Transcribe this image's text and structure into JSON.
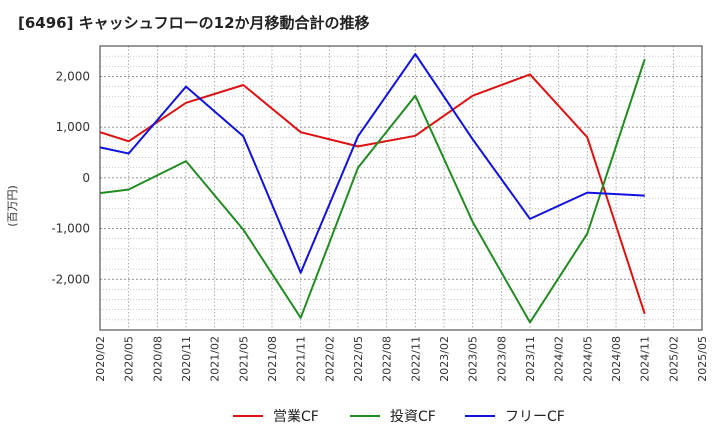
{
  "chart_data": {
    "type": "line",
    "title": "[6496]  キャッシュフローの12か月移動合計の推移",
    "ylabel": "(百万円)",
    "xlabel": "",
    "ylim": [
      -3000,
      2600
    ],
    "yticks": [
      -2000,
      -1000,
      0,
      1000,
      2000
    ],
    "ytick_labels": [
      "-2,000",
      "-1,000",
      "0",
      "1,000",
      "2,000"
    ],
    "xtick_labels": [
      "2020/02",
      "2020/05",
      "2020/08",
      "2020/11",
      "2021/02",
      "2021/05",
      "2021/08",
      "2021/11",
      "2022/02",
      "2022/05",
      "2022/08",
      "2022/11",
      "2023/02",
      "2023/05",
      "2023/08",
      "2023/11",
      "2024/02",
      "2024/05",
      "2024/08",
      "2024/11",
      "2025/02",
      "2025/05"
    ],
    "grid": true,
    "legend_position": "bottom",
    "series": [
      {
        "name": "営業CF",
        "color": "#dd1111",
        "x": [
          "2020/02",
          "2020/05",
          "2020/11",
          "2021/05",
          "2021/11",
          "2022/05",
          "2022/11",
          "2023/05",
          "2023/11",
          "2024/05",
          "2024/11"
        ],
        "values": [
          900,
          720,
          1480,
          1830,
          900,
          620,
          830,
          1620,
          2040,
          800,
          -2680
        ]
      },
      {
        "name": "投資CF",
        "color": "#228b22",
        "x": [
          "2020/02",
          "2020/05",
          "2020/11",
          "2021/05",
          "2021/11",
          "2022/05",
          "2022/11",
          "2023/05",
          "2023/11",
          "2024/05",
          "2024/11"
        ],
        "values": [
          -300,
          -230,
          330,
          -1020,
          -2760,
          200,
          1620,
          -870,
          -2850,
          -1100,
          2340
        ]
      },
      {
        "name": "フリーCF",
        "color": "#1111dd",
        "x": [
          "2020/02",
          "2020/05",
          "2020/11",
          "2021/05",
          "2021/11",
          "2022/05",
          "2022/11",
          "2023/05",
          "2023/11",
          "2024/05",
          "2024/11"
        ],
        "values": [
          600,
          480,
          1800,
          820,
          -1870,
          820,
          2440,
          760,
          -810,
          -290,
          -350
        ]
      }
    ]
  }
}
